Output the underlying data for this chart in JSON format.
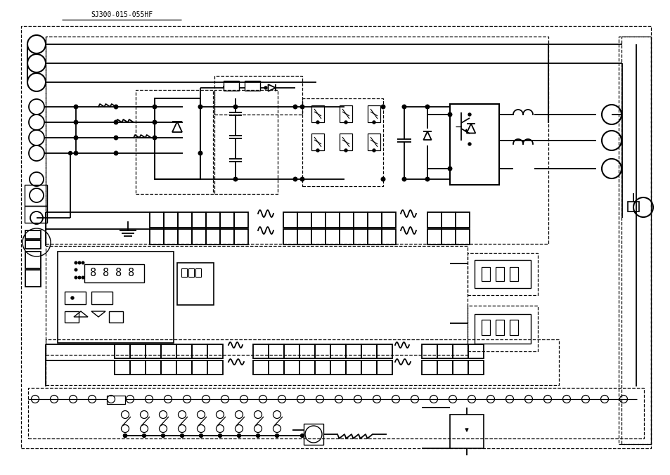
{
  "bg": "#ffffff",
  "lw": 1.3,
  "dlw": 0.9,
  "fw": 9.54,
  "fh": 6.76,
  "dpi": 100
}
